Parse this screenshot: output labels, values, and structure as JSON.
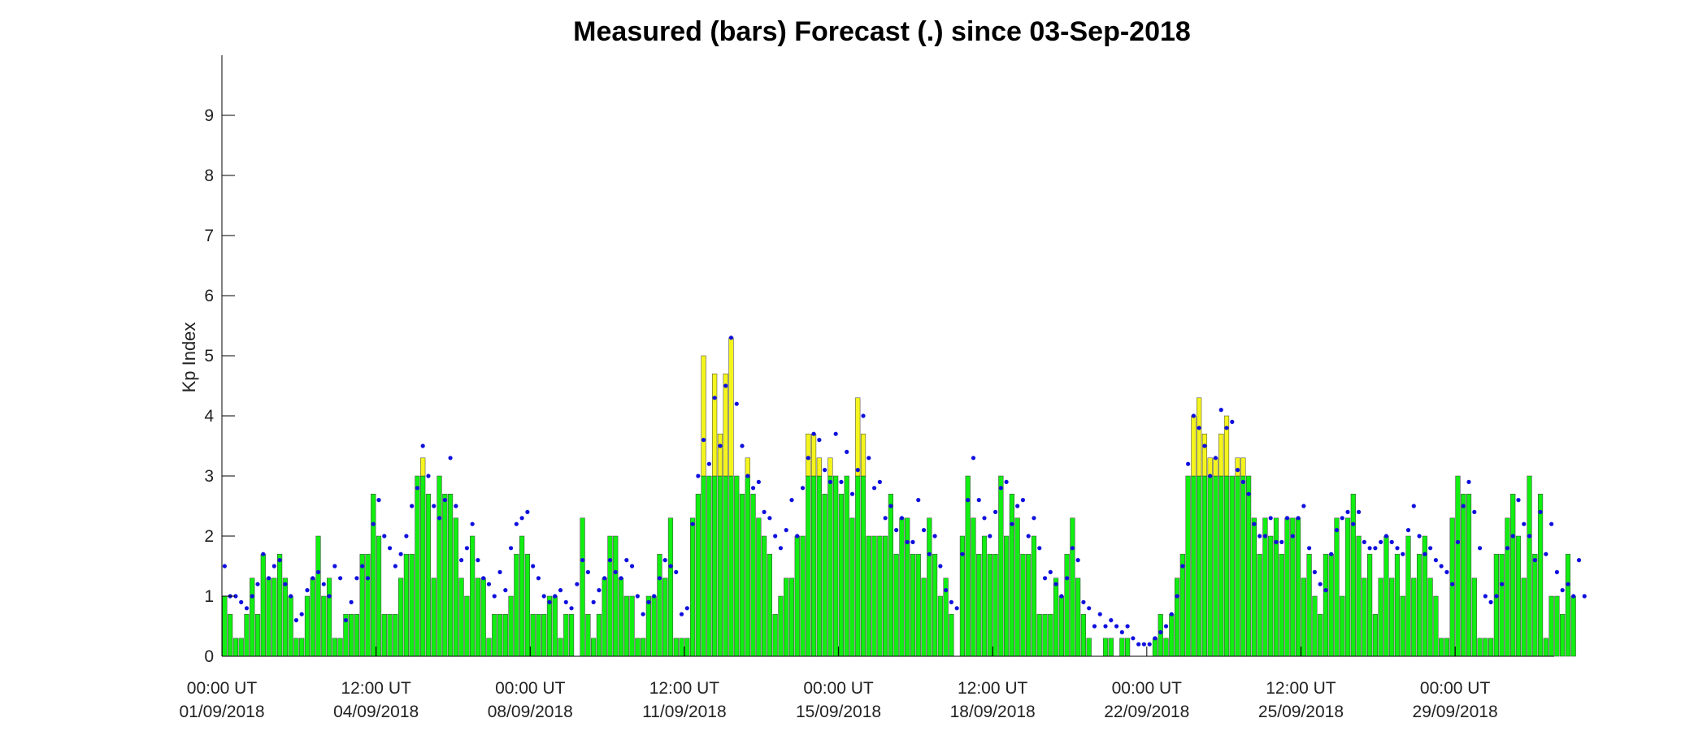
{
  "chart_data": {
    "type": "bar",
    "title": "Measured (bars) Forecast (.) since 03-Sep-2018",
    "xlabel": "",
    "ylabel": "Kp Index",
    "ylim": [
      0,
      10
    ],
    "yticks": [
      0,
      1,
      2,
      3,
      4,
      5,
      6,
      7,
      8,
      9
    ],
    "x_unit": "3-hour interval since 00:00 UT 01/09/2018",
    "xlim": [
      0,
      242
    ],
    "xticks": [
      {
        "x": 0,
        "line1": "00:00 UT",
        "line2": "01/09/2018"
      },
      {
        "x": 28,
        "line1": "12:00 UT",
        "line2": "04/09/2018"
      },
      {
        "x": 56,
        "line1": "00:00 UT",
        "line2": "08/09/2018"
      },
      {
        "x": 84,
        "line1": "12:00 UT",
        "line2": "11/09/2018"
      },
      {
        "x": 112,
        "line1": "00:00 UT",
        "line2": "15/09/2018"
      },
      {
        "x": 140,
        "line1": "12:00 UT",
        "line2": "18/09/2018"
      },
      {
        "x": 168,
        "line1": "00:00 UT",
        "line2": "22/09/2018"
      },
      {
        "x": 196,
        "line1": "12:00 UT",
        "line2": "25/09/2018"
      },
      {
        "x": 224,
        "line1": "00:00 UT",
        "line2": "29/09/2018"
      }
    ],
    "storm_threshold": 3,
    "colors": {
      "bar_quiet": "#11ee11",
      "bar_storm": "#f5f51e",
      "bar_edge": "#3a3a3a",
      "forecast_dot": "#1010dd",
      "axis": "#000000"
    },
    "series": [
      {
        "name": "Measured",
        "style": "bars",
        "values": [
          1.0,
          0.7,
          0.3,
          0.3,
          0.7,
          1.3,
          0.7,
          1.7,
          1.3,
          1.3,
          1.7,
          1.3,
          1.0,
          0.3,
          0.3,
          1.0,
          1.3,
          2.0,
          1.0,
          1.3,
          0.3,
          0.3,
          0.7,
          0.7,
          0.7,
          1.7,
          1.7,
          2.7,
          2.0,
          0.7,
          0.7,
          0.7,
          1.3,
          1.7,
          1.7,
          3.0,
          3.3,
          2.7,
          1.3,
          3.0,
          2.7,
          2.7,
          2.3,
          1.3,
          1.0,
          2.0,
          1.3,
          1.3,
          0.3,
          0.7,
          0.7,
          0.7,
          1.0,
          1.7,
          2.0,
          1.7,
          0.7,
          0.7,
          0.7,
          1.0,
          1.0,
          0.3,
          0.7,
          0.7,
          0.0,
          2.3,
          0.7,
          0.3,
          0.7,
          1.3,
          2.0,
          2.0,
          1.3,
          1.0,
          1.0,
          0.3,
          0.3,
          1.0,
          1.0,
          1.7,
          1.3,
          2.3,
          0.3,
          0.3,
          0.3,
          2.3,
          2.7,
          5.0,
          3.0,
          4.7,
          3.7,
          4.7,
          5.3,
          3.0,
          2.7,
          3.3,
          2.7,
          2.3,
          2.0,
          1.7,
          0.7,
          1.0,
          1.3,
          1.3,
          2.0,
          2.0,
          3.7,
          3.7,
          3.3,
          2.7,
          3.3,
          3.0,
          2.7,
          3.0,
          2.3,
          4.3,
          3.7,
          2.0,
          2.0,
          2.0,
          2.0,
          2.7,
          1.7,
          2.3,
          2.3,
          1.7,
          1.7,
          1.3,
          2.3,
          1.7,
          1.0,
          1.3,
          0.7,
          0.0,
          2.0,
          3.0,
          2.3,
          1.7,
          2.0,
          1.7,
          1.7,
          3.0,
          2.0,
          2.7,
          2.3,
          1.7,
          1.7,
          2.0,
          0.7,
          0.7,
          0.7,
          1.3,
          1.0,
          1.7,
          2.3,
          1.3,
          0.7,
          0.3,
          0.0,
          0.0,
          0.3,
          0.3,
          0.0,
          0.3,
          0.3,
          0.0,
          0.0,
          0.0,
          0.0,
          0.3,
          0.7,
          0.3,
          0.7,
          1.3,
          1.7,
          3.0,
          4.0,
          4.3,
          3.7,
          3.3,
          3.3,
          3.7,
          4.0,
          3.0,
          3.3,
          3.3,
          3.0,
          2.3,
          1.7,
          2.3,
          2.0,
          2.3,
          1.7,
          2.3,
          2.3,
          2.3,
          1.3,
          1.7,
          1.0,
          0.7,
          1.7,
          1.7,
          2.3,
          1.0,
          2.3,
          2.7,
          2.0,
          1.3,
          1.7,
          0.7,
          1.3,
          2.0,
          1.3,
          1.7,
          1.0,
          2.0,
          1.3,
          1.7,
          2.0,
          1.3,
          1.0,
          0.3,
          0.3,
          2.3,
          3.0,
          2.7,
          2.7,
          1.3,
          0.3,
          0.3,
          0.3,
          1.7,
          1.7,
          2.3,
          2.7,
          2.0,
          1.3,
          3.0,
          1.7,
          2.7,
          0.3,
          1.0,
          1.0,
          0.7,
          1.7,
          1.0
        ]
      },
      {
        "name": "Forecast",
        "style": "dots",
        "values": [
          1.5,
          1.0,
          1.0,
          0.9,
          0.8,
          1.0,
          1.2,
          1.7,
          1.3,
          1.5,
          1.6,
          1.2,
          1.0,
          0.6,
          0.7,
          1.1,
          1.3,
          1.4,
          1.2,
          1.0,
          1.5,
          1.3,
          0.6,
          0.9,
          1.3,
          1.5,
          1.3,
          2.2,
          2.6,
          2.0,
          1.8,
          1.5,
          1.7,
          2.0,
          2.5,
          2.8,
          3.5,
          3.0,
          2.5,
          2.3,
          2.6,
          3.3,
          2.5,
          1.6,
          1.8,
          2.2,
          1.6,
          1.3,
          1.2,
          1.0,
          1.4,
          1.1,
          1.8,
          2.2,
          2.3,
          2.4,
          1.5,
          1.3,
          1.0,
          0.9,
          1.0,
          1.1,
          0.9,
          0.8,
          1.2,
          1.6,
          1.4,
          0.9,
          1.1,
          1.3,
          1.6,
          1.4,
          1.3,
          1.6,
          1.5,
          1.0,
          0.7,
          0.9,
          1.0,
          1.3,
          1.6,
          1.5,
          1.4,
          0.7,
          0.8,
          2.2,
          3.0,
          3.6,
          3.2,
          4.3,
          3.5,
          4.5,
          5.3,
          4.2,
          3.5,
          3.0,
          2.8,
          2.9,
          2.4,
          2.3,
          2.0,
          1.8,
          2.1,
          2.6,
          2.0,
          2.8,
          3.3,
          3.7,
          3.6,
          3.1,
          2.9,
          3.7,
          2.9,
          3.4,
          2.7,
          3.1,
          4.0,
          3.3,
          2.8,
          2.9,
          2.3,
          2.5,
          2.1,
          2.3,
          1.9,
          1.9,
          2.6,
          2.1,
          1.7,
          2.0,
          1.5,
          1.1,
          0.9,
          0.8,
          1.7,
          2.6,
          3.3,
          2.6,
          2.3,
          2.0,
          2.4,
          2.8,
          2.9,
          2.2,
          2.5,
          2.6,
          2.0,
          2.3,
          1.8,
          1.3,
          1.4,
          1.2,
          1.0,
          1.3,
          1.8,
          1.6,
          0.9,
          0.8,
          0.5,
          0.7,
          0.5,
          0.6,
          0.5,
          0.4,
          0.5,
          0.3,
          0.2,
          0.2,
          0.2,
          0.3,
          0.4,
          0.5,
          0.7,
          1.0,
          1.5,
          3.2,
          4.0,
          3.8,
          3.5,
          3.0,
          3.3,
          4.1,
          3.8,
          3.9,
          3.1,
          2.9,
          2.7,
          2.2,
          2.0,
          2.0,
          2.3,
          1.9,
          1.9,
          2.3,
          2.0,
          2.3,
          2.5,
          1.8,
          1.4,
          1.2,
          1.1,
          1.7,
          2.1,
          2.3,
          2.4,
          2.2,
          2.4,
          1.9,
          1.8,
          1.8,
          1.9,
          2.0,
          1.9,
          1.8,
          1.7,
          2.1,
          2.5,
          2.0,
          1.7,
          1.8,
          1.6,
          1.5,
          1.4,
          1.2,
          1.9,
          2.5,
          2.9,
          2.4,
          1.8,
          1.0,
          0.9,
          1.0,
          1.2,
          1.8,
          2.0,
          2.6,
          2.2,
          2.0,
          1.6,
          2.4,
          1.7,
          2.2,
          1.4,
          1.1,
          1.2,
          1.0,
          1.6,
          1.0
        ]
      }
    ]
  }
}
